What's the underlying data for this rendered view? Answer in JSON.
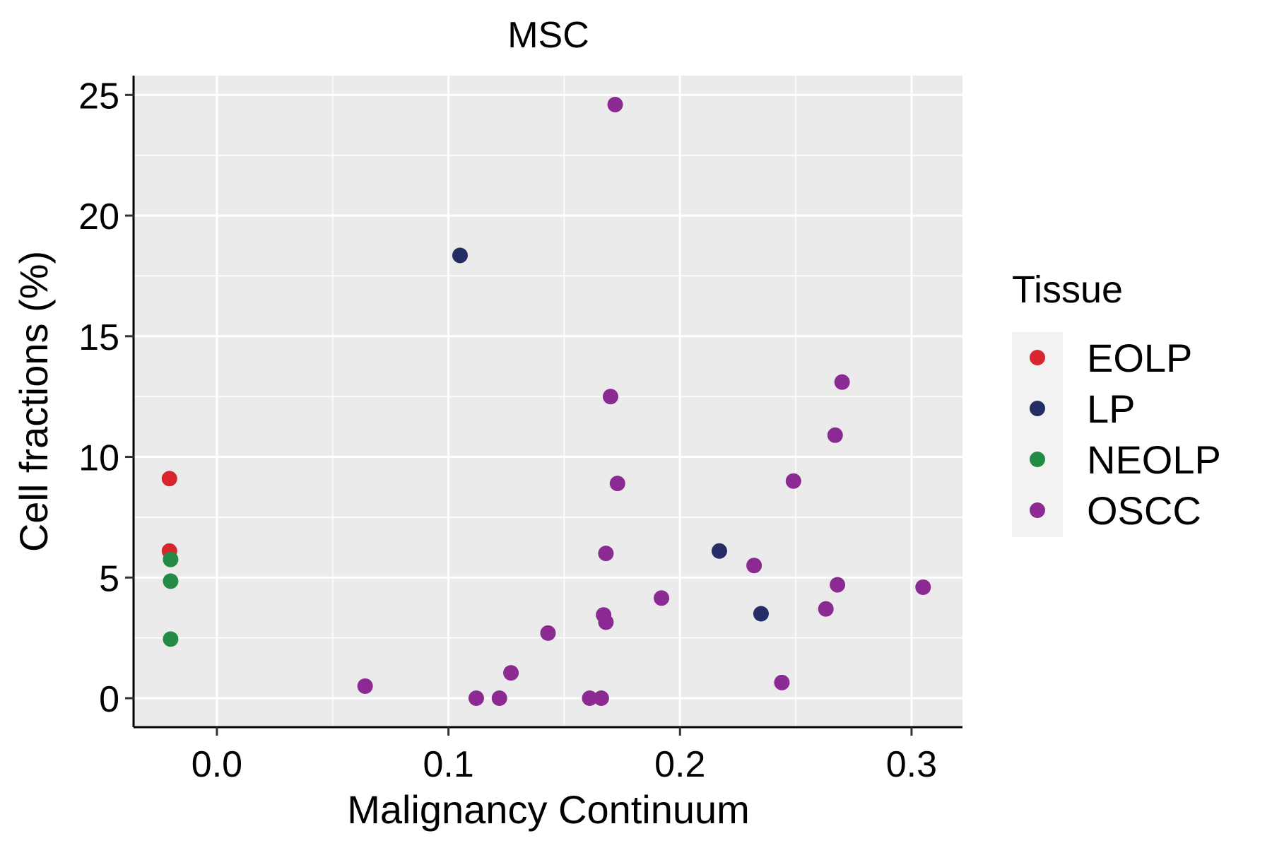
{
  "chart_data": {
    "type": "scatter",
    "title": "MSC",
    "xlabel": "Malignancy Continuum",
    "ylabel": "Cell fractions (%)",
    "xlim": [
      -0.036,
      0.322
    ],
    "ylim": [
      -1.2,
      25.8
    ],
    "x_ticks": [
      0.0,
      0.1,
      0.2,
      0.3
    ],
    "x_tick_labels": [
      "0.0",
      "0.1",
      "0.2",
      "0.3"
    ],
    "y_ticks": [
      0,
      5,
      10,
      15,
      20,
      25
    ],
    "y_tick_labels": [
      "0",
      "5",
      "10",
      "15",
      "20",
      "25"
    ],
    "grid": true,
    "panel_background": "#EBEBEB",
    "legend": {
      "title": "Tissue",
      "position": "right",
      "entries": [
        {
          "label": "EOLP",
          "color": "#D7262E"
        },
        {
          "label": "LP",
          "color": "#242D64"
        },
        {
          "label": "NEOLP",
          "color": "#238B45"
        },
        {
          "label": "OSCC",
          "color": "#8A2A92"
        }
      ]
    },
    "series": [
      {
        "name": "EOLP",
        "color": "#D7262E",
        "points": [
          [
            -0.0205,
            9.1
          ],
          [
            -0.0205,
            6.1
          ]
        ]
      },
      {
        "name": "LP",
        "color": "#242D64",
        "points": [
          [
            0.105,
            18.35
          ],
          [
            0.217,
            6.1
          ],
          [
            0.235,
            3.5
          ]
        ]
      },
      {
        "name": "NEOLP",
        "color": "#238B45",
        "points": [
          [
            -0.02,
            5.75
          ],
          [
            -0.02,
            4.85
          ],
          [
            -0.02,
            2.45
          ]
        ]
      },
      {
        "name": "OSCC",
        "color": "#8A2A92",
        "points": [
          [
            0.172,
            24.6
          ],
          [
            0.17,
            12.5
          ],
          [
            0.27,
            13.1
          ],
          [
            0.267,
            10.9
          ],
          [
            0.173,
            8.9
          ],
          [
            0.249,
            9.0
          ],
          [
            0.168,
            6.0
          ],
          [
            0.232,
            5.5
          ],
          [
            0.268,
            4.7
          ],
          [
            0.305,
            4.6
          ],
          [
            0.192,
            4.15
          ],
          [
            0.167,
            3.45
          ],
          [
            0.168,
            3.15
          ],
          [
            0.263,
            3.7
          ],
          [
            0.143,
            2.7
          ],
          [
            0.127,
            1.05
          ],
          [
            0.244,
            0.65
          ],
          [
            0.064,
            0.5
          ],
          [
            0.112,
            0.0
          ],
          [
            0.122,
            0.0
          ],
          [
            0.161,
            0.0
          ],
          [
            0.166,
            0.0
          ]
        ]
      }
    ]
  }
}
